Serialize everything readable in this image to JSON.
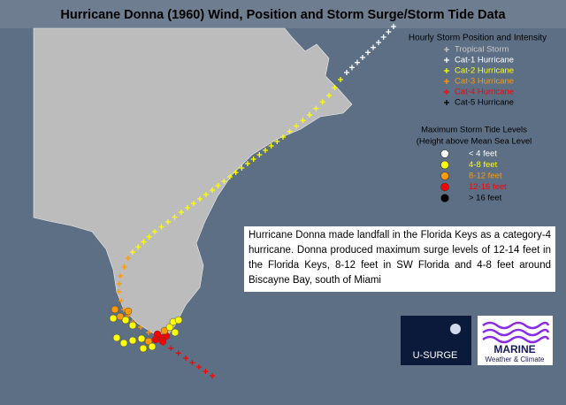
{
  "header": {
    "title": "Hurricane Donna (1960) Wind, Position and Storm Surge/Storm Tide Data"
  },
  "track_legend": {
    "title": "Hourly Storm Position and Intensity",
    "items": [
      "Tropical Storm",
      "Cat-1 Hurricane",
      "Cat-2 Hurricane",
      "Cat-3 Hurricane",
      "Cat-4 Hurricane",
      "Cat-5 Hurricane"
    ]
  },
  "surge_legend": {
    "title": "Maximum Storm Tide Levels",
    "subtitle": "(Height above Mean Sea Level",
    "items": [
      "< 4 feet",
      "4-8 feet",
      "8-12 feet",
      "12-16 feet",
      "> 16 feet"
    ]
  },
  "description": "Hurricane Donna made landfall in the Florida Keys as a category-4 hurricane. Donna produced maximum surge levels of 12-14 feet in the Florida Keys, 8-12 feet in SW Florida and 4-8 feet around Biscayne Bay, south of Miami",
  "logos": {
    "usurge": "U-SURGE",
    "marine": "MARINE",
    "marine_sub": "Weather & Climate"
  }
}
